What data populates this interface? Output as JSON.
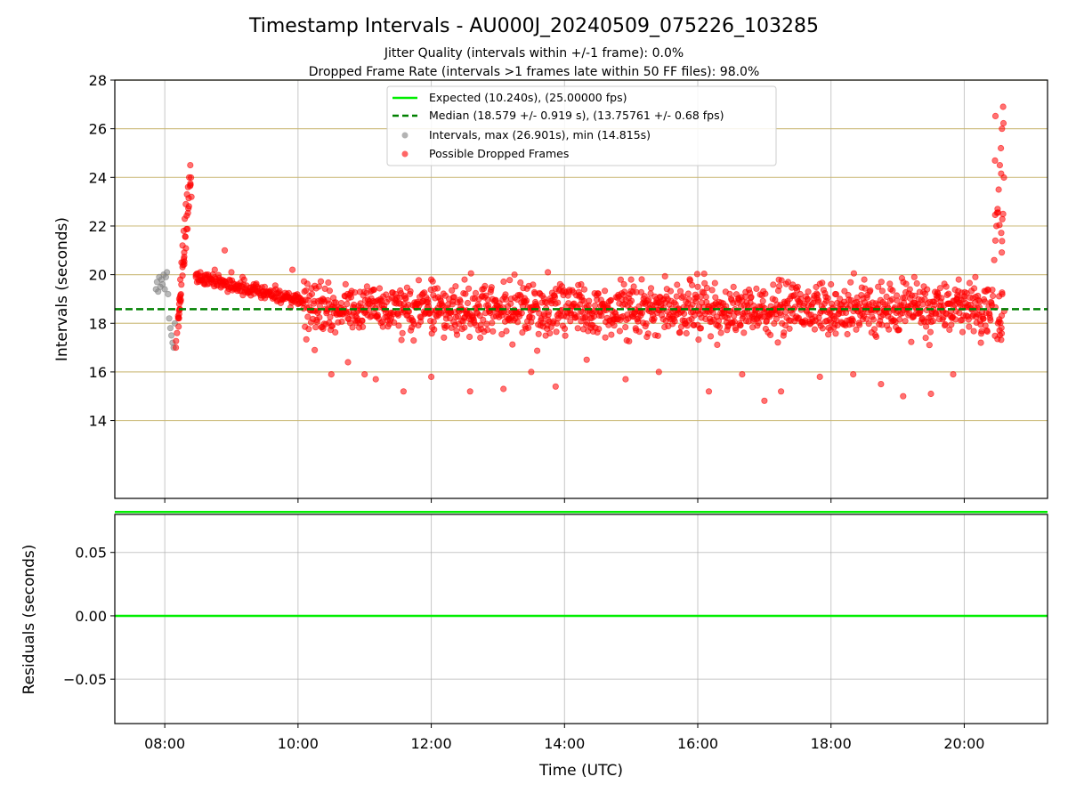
{
  "figure": {
    "title": "Timestamp Intervals - AU000J_20240509_075226_103285",
    "subtitle_1": "Jitter Quality (intervals within +/-1 frame): 0.0%",
    "subtitle_2": "Dropped Frame Rate (intervals >1 frames late within 50 FF files): 98.0%"
  },
  "colors": {
    "expected": "#00ee00",
    "median": "#008000",
    "intervals": "#808080",
    "dropped": "#ff0000",
    "hgrid": "#c8b670",
    "grid": "#b0b0b0"
  },
  "chart_data": [
    {
      "type": "scatter",
      "panel": "intervals",
      "xlabel": "",
      "ylabel": "Intervals (seconds)",
      "xlim": [
        "07:15",
        "21:15"
      ],
      "ylim": [
        10.8,
        28
      ],
      "yticks": [
        14,
        16,
        18,
        20,
        22,
        24,
        26,
        28
      ],
      "xticks": [
        "08:00",
        "10:00",
        "12:00",
        "14:00",
        "16:00",
        "18:00",
        "20:00"
      ],
      "grid": true,
      "legend_position": "top-center",
      "legend": [
        {
          "label": "Expected (10.240s), (25.00000 fps)",
          "style": "solid-line",
          "color": "#00ee00"
        },
        {
          "label": "Median (18.579 +/- 0.919 s), (13.75761 +/- 0.68 fps)",
          "style": "dashed-line",
          "color": "#008000"
        },
        {
          "label": "Intervals, max (26.901s), min (14.815s)",
          "style": "marker",
          "color": "#808080"
        },
        {
          "label": "Possible Dropped Frames",
          "style": "marker",
          "color": "#ff0000"
        }
      ],
      "reference_lines": {
        "expected": 10.24,
        "median": 18.579
      },
      "series": [
        {
          "name": "Intervals, max (26.901s), min (14.815s)",
          "points": [
            [
              "07:52",
              19.4
            ],
            [
              "07:53",
              19.7
            ],
            [
              "07:54",
              19.3
            ],
            [
              "07:55",
              19.9
            ],
            [
              "07:56",
              19.5
            ],
            [
              "07:57",
              19.8
            ],
            [
              "07:58",
              19.6
            ],
            [
              "07:59",
              20.0
            ],
            [
              "08:00",
              19.4
            ],
            [
              "08:01",
              19.9
            ],
            [
              "08:02",
              20.1
            ],
            [
              "08:03",
              19.2
            ],
            [
              "08:04",
              18.2
            ],
            [
              "08:05",
              17.8
            ],
            [
              "08:06",
              17.5
            ],
            [
              "08:07",
              17.2
            ],
            [
              "08:08",
              17.0
            ],
            [
              "08:09",
              18.0
            ]
          ]
        },
        {
          "name": "Possible Dropped Frames",
          "summary": {
            "count_approx": 1900,
            "x_range": [
              "08:09",
              "20:36"
            ],
            "main_band": [
              17.0,
              20.0
            ],
            "min": 14.815,
            "max": 26.901
          },
          "points": [
            [
              "08:10",
              17.0
            ],
            [
              "08:11",
              17.6
            ],
            [
              "08:12",
              18.3
            ],
            [
              "08:13",
              19.0
            ],
            [
              "08:14",
              19.8
            ],
            [
              "08:15",
              20.5
            ],
            [
              "08:16",
              21.2
            ],
            [
              "08:17",
              21.8
            ],
            [
              "08:18",
              22.3
            ],
            [
              "08:19",
              22.9
            ],
            [
              "08:20",
              23.3
            ],
            [
              "08:21",
              23.6
            ],
            [
              "08:22",
              24.0
            ],
            [
              "08:23",
              24.5
            ],
            [
              "08:24",
              23.2
            ],
            [
              "08:28",
              19.9
            ],
            [
              "08:32",
              20.1
            ],
            [
              "08:36",
              19.6
            ],
            [
              "08:40",
              19.8
            ],
            [
              "08:45",
              20.2
            ],
            [
              "08:50",
              19.7
            ],
            [
              "08:54",
              21.0
            ],
            [
              "09:00",
              20.1
            ],
            [
              "09:10",
              19.9
            ],
            [
              "09:20",
              19.6
            ],
            [
              "09:30",
              19.5
            ],
            [
              "09:40",
              19.4
            ],
            [
              "09:50",
              19.2
            ],
            [
              "09:55",
              20.2
            ],
            [
              "10:00",
              19.0
            ],
            [
              "10:15",
              16.9
            ],
            [
              "10:30",
              15.9
            ],
            [
              "10:45",
              16.4
            ],
            [
              "11:00",
              15.9
            ],
            [
              "11:10",
              15.7
            ],
            [
              "11:35",
              15.2
            ],
            [
              "12:00",
              15.8
            ],
            [
              "12:35",
              15.2
            ],
            [
              "13:05",
              15.3
            ],
            [
              "13:30",
              16.0
            ],
            [
              "13:52",
              15.4
            ],
            [
              "14:20",
              16.5
            ],
            [
              "14:55",
              15.7
            ],
            [
              "15:25",
              16.0
            ],
            [
              "16:10",
              15.2
            ],
            [
              "16:40",
              15.9
            ],
            [
              "17:00",
              14.815
            ],
            [
              "17:15",
              15.2
            ],
            [
              "17:50",
              15.8
            ],
            [
              "18:20",
              15.9
            ],
            [
              "18:45",
              15.5
            ],
            [
              "19:05",
              15.0
            ],
            [
              "19:30",
              15.1
            ],
            [
              "19:50",
              15.9
            ],
            [
              "12:00",
              19.8
            ],
            [
              "12:30",
              19.8
            ],
            [
              "13:15",
              20.0
            ],
            [
              "13:45",
              20.1
            ],
            [
              "14:15",
              19.6
            ],
            [
              "15:00",
              19.8
            ],
            [
              "16:00",
              19.5
            ],
            [
              "17:30",
              19.5
            ],
            [
              "18:00",
              19.6
            ],
            [
              "18:30",
              19.8
            ],
            [
              "19:15",
              19.9
            ],
            [
              "19:55",
              19.8
            ],
            [
              "20:10",
              19.9
            ],
            [
              "20:15",
              17.2
            ],
            [
              "20:27",
              20.6
            ],
            [
              "20:28",
              21.4
            ],
            [
              "20:29",
              22.0
            ],
            [
              "20:30",
              22.7
            ],
            [
              "20:31",
              23.5
            ],
            [
              "20:32",
              24.5
            ],
            [
              "20:33",
              25.2
            ],
            [
              "20:34",
              26.0
            ],
            [
              "20:35",
              26.901
            ],
            [
              "20:36",
              18.5
            ]
          ]
        }
      ]
    },
    {
      "type": "line",
      "panel": "residuals",
      "xlabel": "Time (UTC)",
      "ylabel": "Residuals (seconds)",
      "xlim": [
        "07:15",
        "21:15"
      ],
      "ylim": [
        -0.085,
        0.08
      ],
      "yticks": [
        "0.05",
        "0.00",
        "−0.05"
      ],
      "xticks": [
        "08:00",
        "10:00",
        "12:00",
        "14:00",
        "16:00",
        "18:00",
        "20:00"
      ],
      "grid": true,
      "series": [
        {
          "x": [
            "07:15",
            "21:15"
          ],
          "values": [
            0.0,
            0.0
          ]
        }
      ]
    }
  ]
}
